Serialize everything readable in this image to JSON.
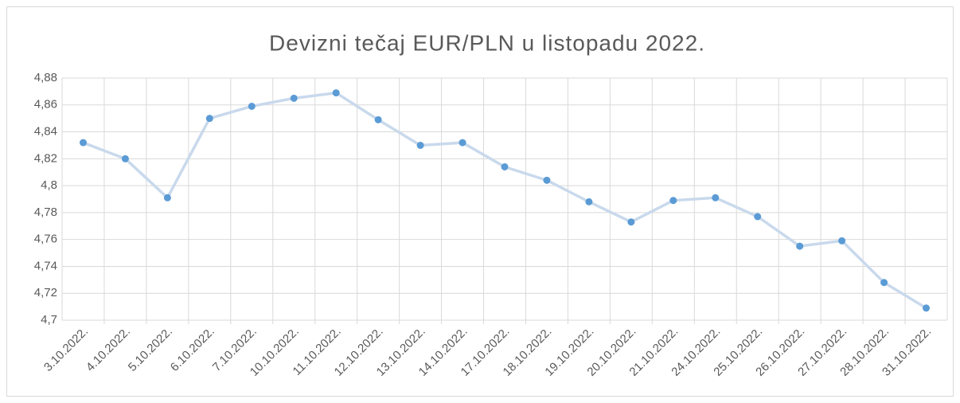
{
  "chart_data": {
    "type": "line",
    "title": "Devizni tečaj EUR/PLN u listopadu 2022.",
    "categories": [
      "3.10.2022.",
      "4.10.2022.",
      "5.10.2022.",
      "6.10.2022.",
      "7.10.2022.",
      "10.10.2022.",
      "11.10.2022.",
      "12.10.2022.",
      "13.10.2022.",
      "14.10.2022.",
      "17.10.2022.",
      "18.10.2022.",
      "19.10.2022.",
      "20.10.2022.",
      "21.10.2022.",
      "24.10.2022.",
      "25.10.2022.",
      "26.10.2022.",
      "27.10.2022.",
      "28.10.2022.",
      "31.10.2022."
    ],
    "series": [
      {
        "name": "EUR/PLN",
        "line_color": "#c9d9ec",
        "color": "#5b9bd5",
        "values": [
          4.832,
          4.82,
          4.791,
          4.85,
          4.859,
          4.865,
          4.869,
          4.849,
          4.83,
          4.832,
          4.814,
          4.804,
          4.788,
          4.773,
          4.789,
          4.791,
          4.777,
          4.755,
          4.759,
          4.728,
          4.709
        ]
      }
    ],
    "ylim": [
      4.7,
      4.88
    ],
    "yticks": [
      {
        "value": 4.7,
        "label": "4,7"
      },
      {
        "value": 4.72,
        "label": "4,72"
      },
      {
        "value": 4.74,
        "label": "4,74"
      },
      {
        "value": 4.76,
        "label": "4,76"
      },
      {
        "value": 4.78,
        "label": "4,78"
      },
      {
        "value": 4.8,
        "label": "4,8"
      },
      {
        "value": 4.82,
        "label": "4,82"
      },
      {
        "value": 4.84,
        "label": "4,84"
      },
      {
        "value": 4.86,
        "label": "4,86"
      },
      {
        "value": 4.88,
        "label": "4,88"
      }
    ],
    "grid": true,
    "legend": false
  }
}
